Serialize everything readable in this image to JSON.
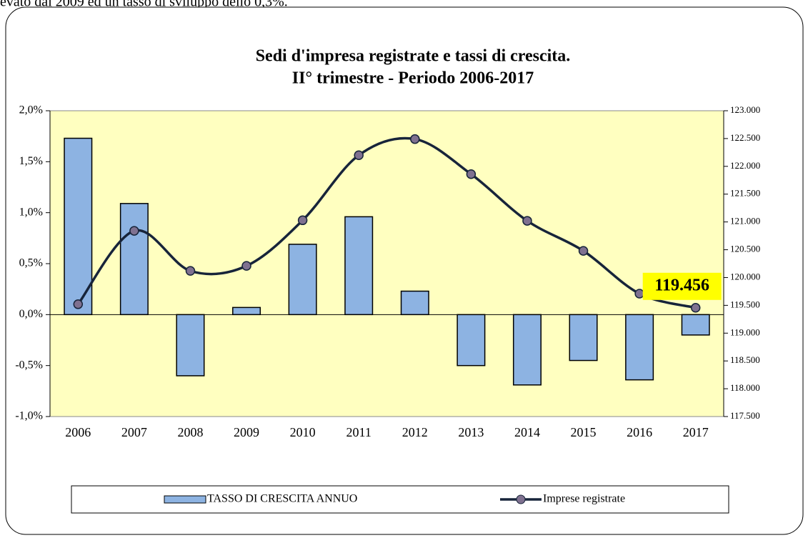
{
  "caption": "evato dal 2009 ed un tasso di sviluppo dello 0,3%.",
  "chart_data": {
    "type": "bar",
    "title": [
      "Sedi d'impresa registrate e tassi di crescita.",
      "II° trimestre - Periodo 2006-2017"
    ],
    "categories": [
      "2006",
      "2007",
      "2008",
      "2009",
      "2010",
      "2011",
      "2012",
      "2013",
      "2014",
      "2015",
      "2016",
      "2017"
    ],
    "series": [
      {
        "name": "TASSO DI CRESCITA ANNUO",
        "type": "bar",
        "color": "#8db3e2",
        "values": [
          1.73,
          1.09,
          -0.6,
          0.07,
          0.69,
          0.96,
          0.23,
          -0.5,
          -0.69,
          -0.45,
          -0.64,
          -0.2
        ]
      },
      {
        "name": "Imprese registrate",
        "type": "line",
        "axis": "y2",
        "color": "#17243a",
        "marker_color": "#7f7190",
        "smooth": true,
        "values": [
          119520,
          120840,
          120120,
          120210,
          121030,
          122200,
          122490,
          121860,
          121020,
          120480,
          119710,
          119456
        ],
        "value_labels": [
          null,
          null,
          null,
          null,
          null,
          null,
          null,
          null,
          null,
          null,
          null,
          "119.456"
        ]
      }
    ],
    "ylim": [
      -1.0,
      2.0
    ],
    "yticks": [
      {
        "value": -1.0,
        "label": "-1,0%"
      },
      {
        "value": -0.5,
        "label": "-0,5%"
      },
      {
        "value": 0.0,
        "label": "0,0%"
      },
      {
        "value": 0.5,
        "label": "0,5%"
      },
      {
        "value": 1.0,
        "label": "1,0%"
      },
      {
        "value": 1.5,
        "label": "1,5%"
      },
      {
        "value": 2.0,
        "label": "2,0%"
      }
    ],
    "y2lim": [
      117500,
      123000
    ],
    "y2ticks": [
      {
        "value": 117500,
        "label": "117.500"
      },
      {
        "value": 118000,
        "label": "118.000"
      },
      {
        "value": 118500,
        "label": "118.500"
      },
      {
        "value": 119000,
        "label": "119.000"
      },
      {
        "value": 119500,
        "label": "119.500"
      },
      {
        "value": 120000,
        "label": "120.000"
      },
      {
        "value": 120500,
        "label": "120.500"
      },
      {
        "value": 121000,
        "label": "121.000"
      },
      {
        "value": 121500,
        "label": "121.500"
      },
      {
        "value": 122000,
        "label": "122.000"
      },
      {
        "value": 122500,
        "label": "122.500"
      },
      {
        "value": 123000,
        "label": "123.000"
      }
    ],
    "grid": false,
    "legend": "bottom",
    "plot_background": "#ffffc0",
    "label_background": "#ffff00"
  }
}
